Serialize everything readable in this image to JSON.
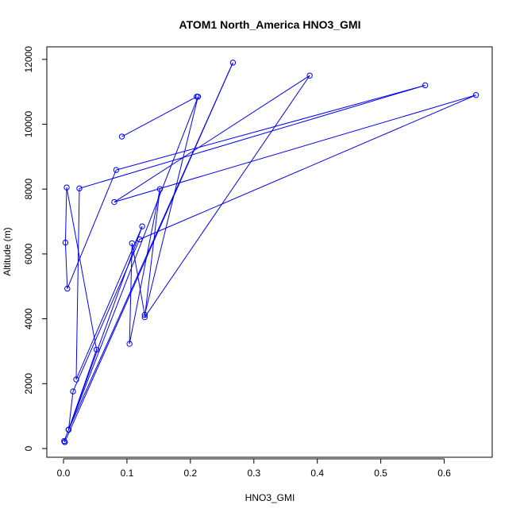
{
  "chart_data": {
    "type": "scatter",
    "title": "ATOM1 North_America HNO3_GMI",
    "xlabel": "HNO3_GMI",
    "ylabel": "Altitude (m)",
    "xlim": [
      0.0,
      0.65
    ],
    "ylim": [
      0,
      12000
    ],
    "xticks": [
      "0.0",
      "0.1",
      "0.2",
      "0.3",
      "0.4",
      "0.5",
      "0.6"
    ],
    "yticks": [
      "0",
      "2000",
      "4000",
      "6000",
      "8000",
      "10000",
      "12000"
    ],
    "grid": false,
    "series": [
      {
        "color": "#0000ff",
        "style": "line+circle",
        "points": [
          {
            "x": 0.002,
            "y": 200
          },
          {
            "x": 0.001,
            "y": 230
          },
          {
            "x": 0.008,
            "y": 580
          },
          {
            "x": 0.015,
            "y": 1760
          },
          {
            "x": 0.12,
            "y": 6450
          },
          {
            "x": 0.65,
            "y": 10900
          },
          {
            "x": 0.08,
            "y": 7600
          },
          {
            "x": 0.388,
            "y": 11500
          },
          {
            "x": 0.128,
            "y": 4050
          },
          {
            "x": 0.152,
            "y": 8000
          },
          {
            "x": 0.104,
            "y": 3230
          },
          {
            "x": 0.108,
            "y": 6330
          },
          {
            "x": 0.128,
            "y": 4120
          },
          {
            "x": 0.212,
            "y": 10850
          },
          {
            "x": 0.008,
            "y": 580
          },
          {
            "x": 0.124,
            "y": 6850
          },
          {
            "x": 0.02,
            "y": 2130
          },
          {
            "x": 0.025,
            "y": 8020
          },
          {
            "x": 0.57,
            "y": 11200
          },
          {
            "x": 0.083,
            "y": 8590
          },
          {
            "x": 0.006,
            "y": 4930
          },
          {
            "x": 0.003,
            "y": 6350
          },
          {
            "x": 0.005,
            "y": 8050
          },
          {
            "x": 0.052,
            "y": 3050
          },
          {
            "x": 0.008,
            "y": 580
          },
          {
            "x": 0.267,
            "y": 11900
          },
          {
            "x": 0.002,
            "y": 200
          }
        ],
        "extra_segments": [
          [
            {
              "x": 0.092,
              "y": 9620
            },
            {
              "x": 0.21,
              "y": 10850
            }
          ]
        ]
      }
    ]
  }
}
